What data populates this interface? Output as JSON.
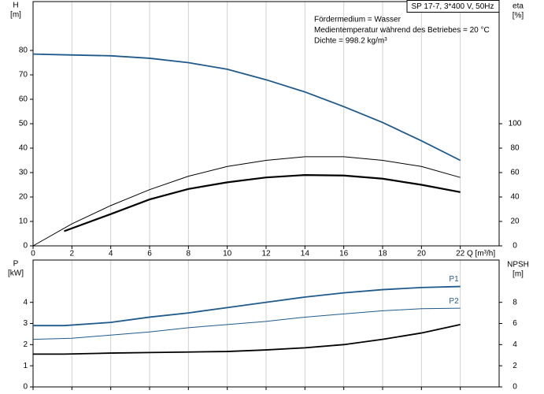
{
  "chart_data": [
    {
      "type": "line",
      "title": "SP 17-7, 3*400 V, 50Hz",
      "annotations": [
        "Fördermedium = Wasser",
        "Medientemperatur während des Betriebes = 20 °C",
        "Dichte = 998.2 kg/m³"
      ],
      "y_label": "H",
      "y_unit": "[m]",
      "y2_label": "eta",
      "y2_unit": "[%]",
      "x_label": "Q [m³/h]",
      "xlim": [
        0,
        24
      ],
      "xticks": [
        0,
        2,
        4,
        6,
        8,
        10,
        12,
        14,
        16,
        18,
        20,
        22
      ],
      "ylim": [
        0,
        100
      ],
      "yticks": [
        0,
        10,
        20,
        30,
        40,
        50,
        60,
        70,
        80
      ],
      "y2lim": [
        0,
        200
      ],
      "y2ticks": [
        0,
        20,
        40,
        60,
        80,
        100
      ],
      "grid": true,
      "series": [
        {
          "color": "#1f5a8c",
          "line_width": 1.8,
          "axis": "y",
          "x": [
            0,
            1.6,
            4,
            6,
            8,
            10,
            12,
            14,
            16,
            18,
            20,
            22
          ],
          "values": [
            78.5,
            78.2,
            77.8,
            76.8,
            75,
            72.3,
            68,
            63,
            57,
            50.5,
            43,
            35
          ]
        },
        {
          "color": "#000000",
          "line_width": 1,
          "axis": "y2",
          "x": [
            0,
            2,
            4,
            6,
            8,
            10,
            12,
            14,
            16,
            18,
            20,
            22
          ],
          "values": [
            0,
            18,
            33,
            46,
            57,
            65,
            70,
            73,
            73,
            70,
            65,
            56
          ]
        },
        {
          "color": "#000000",
          "line_width": 2.2,
          "axis": "y2",
          "x": [
            1.6,
            4,
            6,
            8,
            10,
            12,
            14,
            16,
            18,
            20,
            22
          ],
          "values": [
            12,
            26,
            38,
            46.6,
            52,
            56,
            58,
            57.6,
            55,
            50,
            44
          ]
        }
      ]
    },
    {
      "type": "line",
      "y_label": "P",
      "y_unit": "[kW]",
      "y2_label": "NPSH",
      "y2_unit": "[m]",
      "xlim": [
        0,
        24
      ],
      "xticks": [
        0,
        2,
        4,
        6,
        8,
        10,
        12,
        14,
        16,
        18,
        20,
        22
      ],
      "ylim": [
        0,
        6
      ],
      "yticks": [
        0,
        1,
        2,
        3,
        4
      ],
      "y2lim": [
        0,
        12
      ],
      "y2ticks": [
        0,
        2,
        4,
        6,
        8
      ],
      "grid": true,
      "series": [
        {
          "name": "P1",
          "color": "#1f5a8c",
          "line_width": 1.8,
          "axis": "y",
          "x": [
            0,
            1.6,
            4,
            6,
            8,
            10,
            12,
            14,
            16,
            18,
            20,
            22
          ],
          "values": [
            2.9,
            2.9,
            3.05,
            3.3,
            3.5,
            3.75,
            4.0,
            4.25,
            4.45,
            4.6,
            4.7,
            4.75
          ]
        },
        {
          "name": "P2",
          "color": "#1f5a8c",
          "line_width": 1,
          "axis": "y",
          "x": [
            0,
            2,
            4,
            6,
            8,
            10,
            12,
            14,
            16,
            18,
            20,
            22
          ],
          "values": [
            2.25,
            2.3,
            2.45,
            2.6,
            2.8,
            2.95,
            3.1,
            3.3,
            3.45,
            3.6,
            3.7,
            3.72
          ]
        },
        {
          "color": "#000000",
          "line_width": 1.8,
          "axis": "y2",
          "x": [
            0,
            1.6,
            4,
            6,
            8,
            10,
            12,
            14,
            16,
            18,
            20,
            22
          ],
          "values": [
            3.1,
            3.1,
            3.2,
            3.25,
            3.3,
            3.35,
            3.5,
            3.7,
            4.0,
            4.5,
            5.1,
            5.9
          ]
        }
      ]
    }
  ]
}
